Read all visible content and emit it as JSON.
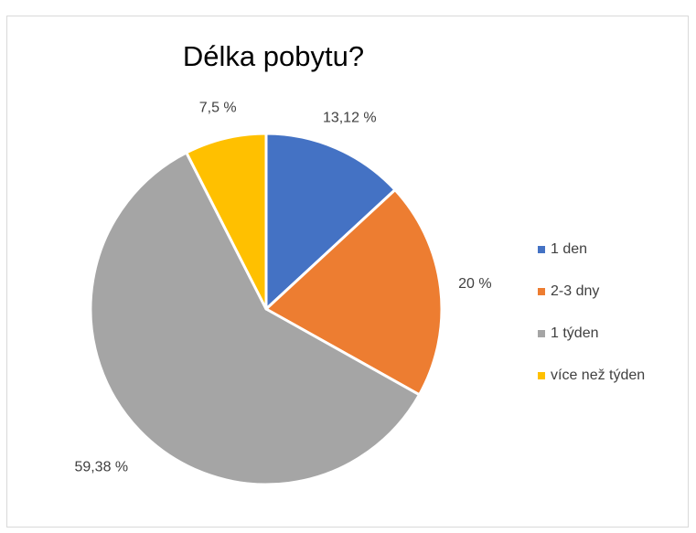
{
  "chart_data": {
    "type": "pie",
    "title": "Délka pobytu?",
    "categories": [
      "1 den",
      "2-3 dny",
      "1 týden",
      "více než týden"
    ],
    "values": [
      13.12,
      20,
      59.38,
      7.5
    ],
    "labels": [
      "13,12 %",
      "20 %",
      "59,38 %",
      "7,5 %"
    ],
    "colors": [
      "#4472C4",
      "#ED7D31",
      "#A5A5A5",
      "#FFC000"
    ],
    "legend_position": "right"
  }
}
